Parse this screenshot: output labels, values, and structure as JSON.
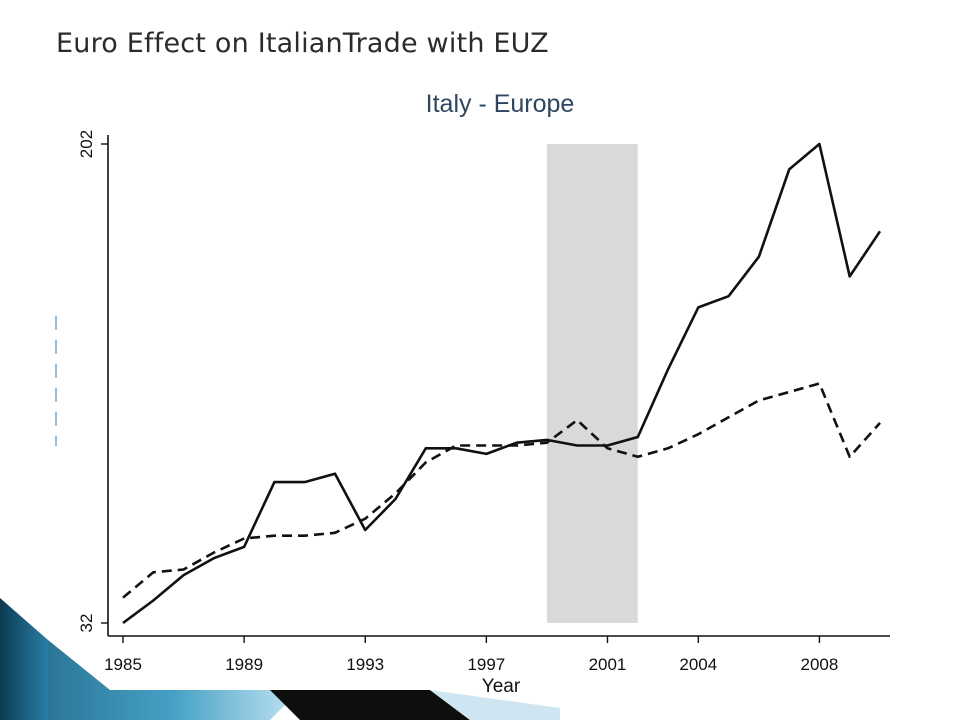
{
  "slide": {
    "title": "Euro Effect on ItalianTrade with EUZ"
  },
  "chart_data": {
    "type": "line",
    "title": "Italy - Europe",
    "xlabel": "Year",
    "ylabel": "",
    "x_ticks": [
      1985,
      1989,
      1993,
      1997,
      2001,
      2004,
      2008
    ],
    "y_ticks": [
      32,
      202
    ],
    "ylim": [
      32,
      202
    ],
    "xlim": [
      1985,
      2010
    ],
    "shaded_region": {
      "from": 1999,
      "to": 2002,
      "color": "#d9d9d9"
    },
    "x": [
      1985,
      1986,
      1987,
      1988,
      1989,
      1990,
      1991,
      1992,
      1993,
      1994,
      1995,
      1996,
      1997,
      1998,
      1999,
      2000,
      2001,
      2002,
      2003,
      2004,
      2005,
      2006,
      2007,
      2008,
      2009,
      2010
    ],
    "series": [
      {
        "style": "solid",
        "values": [
          32,
          40,
          49,
          55,
          59,
          82,
          82,
          85,
          65,
          76,
          94,
          94,
          92,
          96,
          97,
          95,
          95,
          98,
          122,
          144,
          148,
          162,
          193,
          202,
          155,
          171
        ]
      },
      {
        "style": "dashed",
        "values": [
          41,
          50,
          51,
          57,
          62,
          63,
          63,
          64,
          69,
          78,
          89,
          95,
          95,
          95,
          96,
          104,
          94,
          91,
          94,
          99,
          105,
          111,
          114,
          117,
          91,
          103
        ]
      }
    ],
    "grid": false,
    "legend": "none"
  }
}
